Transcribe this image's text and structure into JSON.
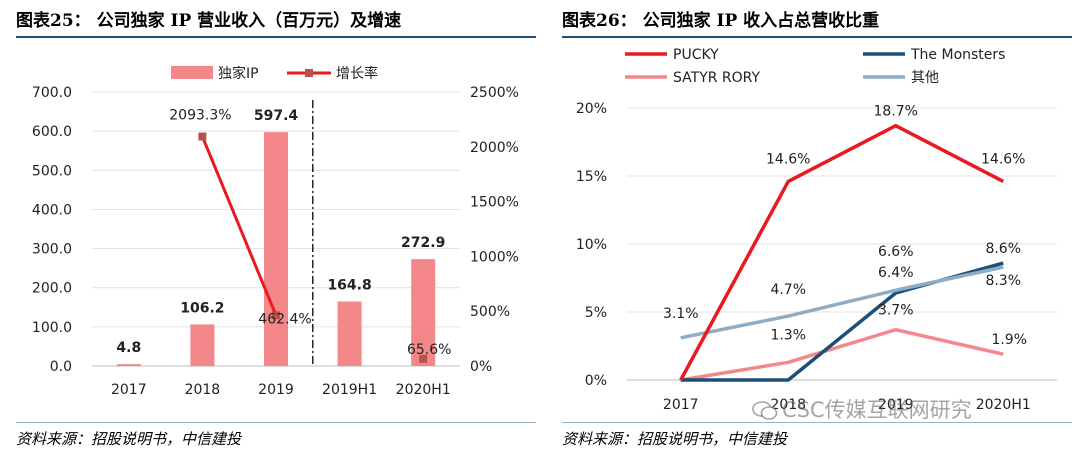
{
  "left_figure": {
    "title": "图表25： 公司独家 IP 营业收入（百万元）及增速",
    "source": "资料来源：招股说明书，中信建投"
  },
  "right_figure": {
    "title": "图表26： 公司独家 IP 收入占总营收比重",
    "source": "资料来源：招股说明书，中信建投"
  },
  "watermark": "CSC传媒互联网研究",
  "colors": {
    "bar": "#f4878a",
    "growth_line": "#e8191f",
    "growth_marker": "#b5524f",
    "pucky": "#e8191f",
    "monsters": "#1b4f79",
    "satyr": "#f4878a",
    "other": "#8eacc4",
    "title_rule": "#1f4e79"
  },
  "chart_data": [
    {
      "type": "bar",
      "categories": [
        "2017",
        "2018",
        "2019",
        "2019H1",
        "2020H1"
      ],
      "series": [
        {
          "name": "独家IP",
          "values": [
            4.8,
            106.2,
            597.4,
            164.8,
            272.9
          ],
          "labels": [
            "4.8",
            "106.2",
            "597.4",
            "164.8",
            "272.9"
          ]
        },
        {
          "name": "增长率",
          "type": "line",
          "axis": "right",
          "values": [
            null,
            2093.3,
            462.4,
            null,
            65.6
          ],
          "labels": [
            "",
            "2093.3%",
            "462.4%",
            "",
            "65.6%"
          ]
        }
      ],
      "ylim": [
        0,
        700
      ],
      "yticks": [
        "0.0",
        "100.0",
        "200.0",
        "300.0",
        "400.0",
        "500.0",
        "600.0",
        "700.0"
      ],
      "y2lim": [
        0,
        2500
      ],
      "y2ticks": [
        "0%",
        "500%",
        "1000%",
        "1500%",
        "2000%",
        "2500%"
      ],
      "legend_position": "top",
      "grid": true
    },
    {
      "type": "line",
      "categories": [
        "2017",
        "2018",
        "2019",
        "2020H1"
      ],
      "series": [
        {
          "name": "PUCKY",
          "values": [
            0,
            14.6,
            18.7,
            14.6
          ],
          "labels": [
            "",
            "14.6%",
            "18.7%",
            "14.6%"
          ]
        },
        {
          "name": "The Monsters",
          "values": [
            0,
            0,
            6.4,
            8.6
          ],
          "labels": [
            "",
            "",
            "6.4%",
            "8.6%"
          ]
        },
        {
          "name": "SATYR RORY",
          "values": [
            0,
            1.3,
            3.7,
            1.9
          ],
          "labels": [
            "",
            "1.3%",
            "3.7%",
            "1.9%"
          ]
        },
        {
          "name": "其他",
          "values": [
            3.1,
            4.7,
            6.6,
            8.3
          ],
          "labels": [
            "3.1%",
            "4.7%",
            "6.6%",
            "8.3%"
          ]
        }
      ],
      "ylim": [
        0,
        20
      ],
      "yticks": [
        "0%",
        "5%",
        "10%",
        "15%",
        "20%"
      ],
      "legend_position": "top",
      "grid": true
    }
  ]
}
